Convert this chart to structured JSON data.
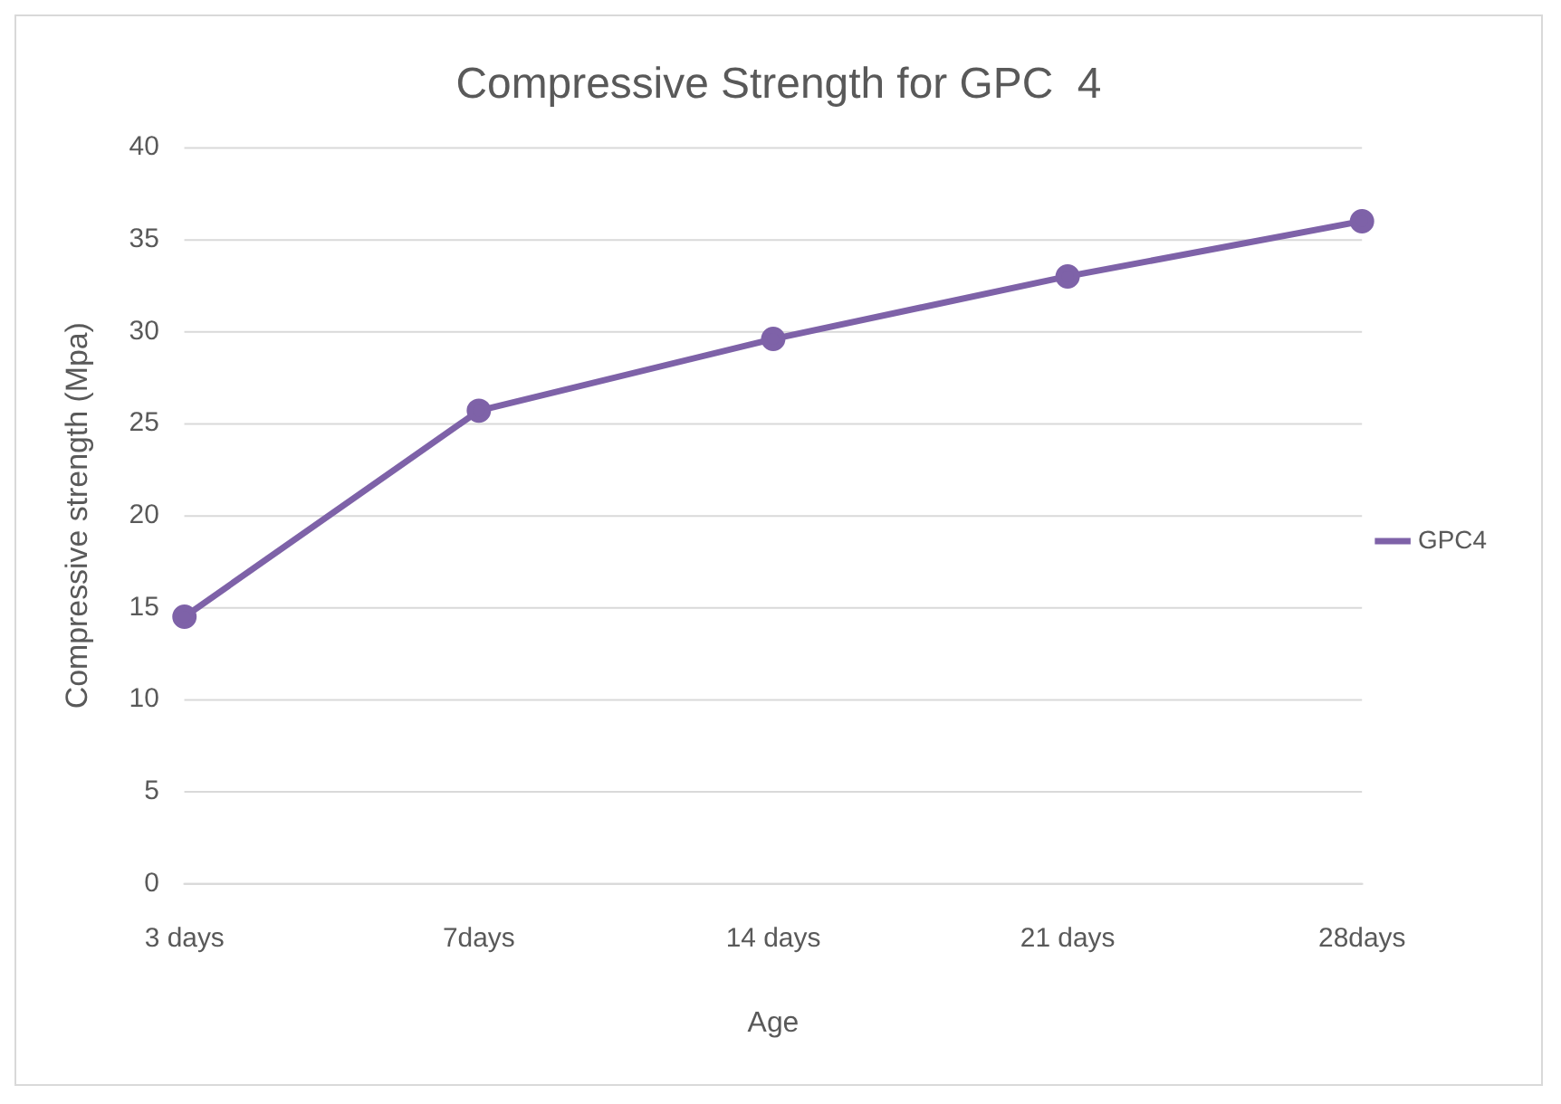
{
  "chart_data": {
    "type": "line",
    "title": "Compressive Strength for GPC  4",
    "xlabel": "Age",
    "ylabel": "Compressive strength (Mpa)",
    "categories": [
      "3 days",
      "7days",
      "14 days",
      "21 days",
      "28days"
    ],
    "series": [
      {
        "name": "GPC4",
        "color": "#7e62a8",
        "values": [
          14.5,
          25.7,
          29.6,
          33,
          36
        ]
      }
    ],
    "ylim": [
      0,
      40
    ],
    "yticks": [
      0,
      5,
      10,
      15,
      20,
      25,
      30,
      35,
      40
    ],
    "grid": "y",
    "legend": "right",
    "marker": "circle",
    "line_style": "solid"
  }
}
